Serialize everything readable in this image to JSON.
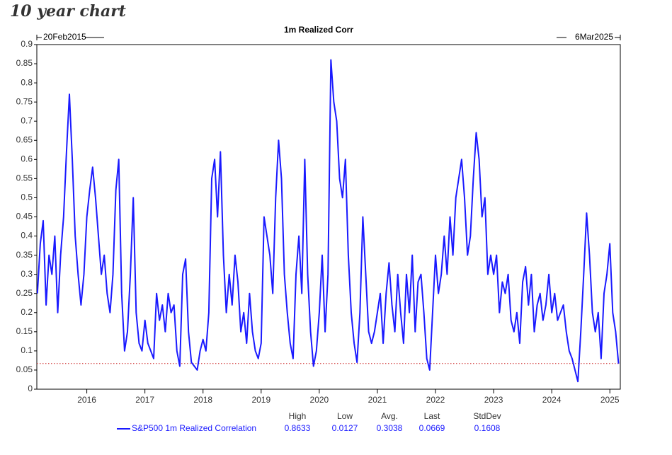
{
  "heading": "10 year chart",
  "chart_data": {
    "type": "line",
    "title": "1m Realized Corr",
    "start_label": "20Feb2015",
    "end_label": "6Mar2025",
    "xlim": [
      2015.14,
      2025.18
    ],
    "xticks": [
      2016,
      2017,
      2018,
      2019,
      2020,
      2021,
      2022,
      2023,
      2024,
      2025
    ],
    "ylim": [
      0,
      0.9
    ],
    "yticks": [
      0,
      0.05,
      0.1,
      0.15,
      0.2,
      0.25,
      0.3,
      0.35,
      0.4,
      0.45,
      0.5,
      0.55,
      0.6,
      0.65,
      0.7,
      0.75,
      0.8,
      0.85,
      0.9
    ],
    "x": [
      2015.15,
      2015.2,
      2015.25,
      2015.3,
      2015.35,
      2015.4,
      2015.45,
      2015.5,
      2015.55,
      2015.6,
      2015.65,
      2015.7,
      2015.75,
      2015.8,
      2015.85,
      2015.9,
      2015.95,
      2016,
      2016.05,
      2016.1,
      2016.15,
      2016.2,
      2016.25,
      2016.3,
      2016.35,
      2016.4,
      2016.45,
      2016.5,
      2016.55,
      2016.6,
      2016.65,
      2016.7,
      2016.75,
      2016.8,
      2016.85,
      2016.9,
      2016.95,
      2017,
      2017.05,
      2017.1,
      2017.15,
      2017.2,
      2017.25,
      2017.3,
      2017.35,
      2017.4,
      2017.45,
      2017.5,
      2017.55,
      2017.6,
      2017.65,
      2017.7,
      2017.75,
      2017.8,
      2017.85,
      2017.9,
      2017.95,
      2018,
      2018.05,
      2018.1,
      2018.15,
      2018.2,
      2018.25,
      2018.3,
      2018.35,
      2018.4,
      2018.45,
      2018.5,
      2018.55,
      2018.6,
      2018.65,
      2018.7,
      2018.75,
      2018.8,
      2018.85,
      2018.9,
      2018.95,
      2019,
      2019.05,
      2019.1,
      2019.15,
      2019.2,
      2019.25,
      2019.3,
      2019.35,
      2019.4,
      2019.45,
      2019.5,
      2019.55,
      2019.6,
      2019.65,
      2019.7,
      2019.75,
      2019.8,
      2019.85,
      2019.9,
      2019.95,
      2020,
      2020.05,
      2020.1,
      2020.15,
      2020.2,
      2020.25,
      2020.3,
      2020.35,
      2020.4,
      2020.45,
      2020.5,
      2020.55,
      2020.6,
      2020.65,
      2020.7,
      2020.75,
      2020.8,
      2020.85,
      2020.9,
      2020.95,
      2021,
      2021.05,
      2021.1,
      2021.15,
      2021.2,
      2021.25,
      2021.3,
      2021.35,
      2021.4,
      2021.45,
      2021.5,
      2021.55,
      2021.6,
      2021.65,
      2021.7,
      2021.75,
      2021.8,
      2021.85,
      2021.9,
      2021.95,
      2022,
      2022.05,
      2022.1,
      2022.15,
      2022.2,
      2022.25,
      2022.3,
      2022.35,
      2022.4,
      2022.45,
      2022.5,
      2022.55,
      2022.6,
      2022.65,
      2022.7,
      2022.75,
      2022.8,
      2022.85,
      2022.9,
      2022.95,
      2023,
      2023.05,
      2023.1,
      2023.15,
      2023.2,
      2023.25,
      2023.3,
      2023.35,
      2023.4,
      2023.45,
      2023.5,
      2023.55,
      2023.6,
      2023.65,
      2023.7,
      2023.75,
      2023.8,
      2023.85,
      2023.9,
      2023.95,
      2024,
      2024.05,
      2024.1,
      2024.15,
      2024.2,
      2024.25,
      2024.3,
      2024.35,
      2024.4,
      2024.45,
      2024.5,
      2024.55,
      2024.6,
      2024.65,
      2024.7,
      2024.75,
      2024.8,
      2024.85,
      2024.9,
      2024.95,
      2025,
      2025.05,
      2025.1,
      2025.15
    ],
    "series": [
      {
        "name": "S&P500 1m Realized Correlation",
        "color": "#1a1aff",
        "values": [
          0.25,
          0.38,
          0.44,
          0.22,
          0.35,
          0.3,
          0.4,
          0.2,
          0.35,
          0.45,
          0.62,
          0.77,
          0.6,
          0.4,
          0.3,
          0.22,
          0.3,
          0.45,
          0.52,
          0.58,
          0.5,
          0.4,
          0.3,
          0.35,
          0.25,
          0.2,
          0.3,
          0.52,
          0.6,
          0.25,
          0.1,
          0.15,
          0.3,
          0.5,
          0.2,
          0.12,
          0.1,
          0.18,
          0.12,
          0.1,
          0.08,
          0.25,
          0.18,
          0.22,
          0.15,
          0.25,
          0.2,
          0.22,
          0.1,
          0.06,
          0.3,
          0.34,
          0.15,
          0.07,
          0.06,
          0.05,
          0.1,
          0.13,
          0.1,
          0.2,
          0.55,
          0.6,
          0.45,
          0.62,
          0.35,
          0.2,
          0.3,
          0.22,
          0.35,
          0.28,
          0.15,
          0.2,
          0.12,
          0.25,
          0.15,
          0.1,
          0.08,
          0.12,
          0.45,
          0.4,
          0.35,
          0.25,
          0.5,
          0.65,
          0.55,
          0.3,
          0.2,
          0.12,
          0.08,
          0.3,
          0.4,
          0.25,
          0.6,
          0.3,
          0.15,
          0.06,
          0.1,
          0.2,
          0.35,
          0.15,
          0.3,
          0.86,
          0.75,
          0.7,
          0.55,
          0.5,
          0.6,
          0.35,
          0.2,
          0.12,
          0.07,
          0.2,
          0.45,
          0.3,
          0.15,
          0.12,
          0.15,
          0.2,
          0.25,
          0.12,
          0.25,
          0.33,
          0.22,
          0.15,
          0.3,
          0.2,
          0.12,
          0.3,
          0.2,
          0.35,
          0.15,
          0.28,
          0.3,
          0.2,
          0.08,
          0.05,
          0.2,
          0.35,
          0.25,
          0.3,
          0.4,
          0.3,
          0.45,
          0.35,
          0.5,
          0.55,
          0.6,
          0.5,
          0.35,
          0.4,
          0.55,
          0.67,
          0.6,
          0.45,
          0.5,
          0.3,
          0.35,
          0.3,
          0.35,
          0.2,
          0.28,
          0.25,
          0.3,
          0.18,
          0.15,
          0.2,
          0.12,
          0.28,
          0.32,
          0.22,
          0.3,
          0.15,
          0.22,
          0.25,
          0.18,
          0.22,
          0.3,
          0.2,
          0.25,
          0.18,
          0.2,
          0.22,
          0.15,
          0.1,
          0.08,
          0.05,
          0.02,
          0.15,
          0.3,
          0.46,
          0.35,
          0.2,
          0.15,
          0.2,
          0.08,
          0.25,
          0.3,
          0.38,
          0.2,
          0.15,
          0.0669
        ]
      }
    ],
    "reference_color": "#cc2222",
    "stats": {
      "labels": [
        "High",
        "Low",
        "Avg.",
        "Last",
        "StdDev"
      ],
      "values": [
        0.8633,
        0.0127,
        0.3038,
        0.0669,
        0.1608
      ]
    }
  }
}
